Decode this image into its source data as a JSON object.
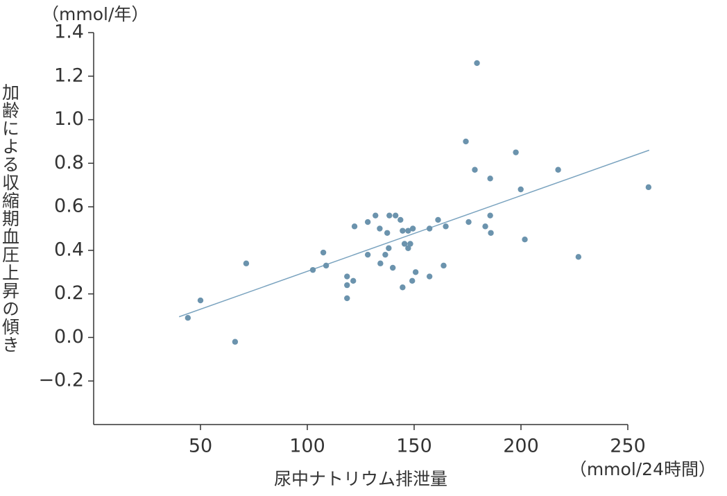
{
  "chart_data": {
    "type": "scatter",
    "y_unit": "（mmol/年）",
    "ylabel": "加齢による収縮期血圧上昇の傾き",
    "xlabel": "尿中ナトリウム排泄量",
    "x_unit": "（mmol/24時間）",
    "color": "#6b93ad",
    "x": [
      44.1,
      50,
      66.2,
      71.4,
      102.6,
      107.5,
      108.8,
      118.6,
      118.6,
      118.6,
      121.5,
      122.1,
      128.3,
      128.3,
      131.9,
      133.9,
      134.2,
      136.5,
      137.4,
      138.1,
      138.4,
      140,
      141.3,
      143.6,
      144.6,
      144.6,
      145.5,
      147.2,
      147.2,
      148.2,
      149.4,
      149.1,
      150.7,
      157.2,
      157.2,
      161.2,
      163.8,
      164.8,
      174.2,
      175.5,
      178.4,
      179.4,
      183.3,
      185.6,
      185.6,
      185.9,
      197.6,
      199.9,
      201.8,
      217.4,
      226.9,
      259.7
    ],
    "values": [
      0.09,
      0.17,
      -0.02,
      0.34,
      0.31,
      0.39,
      0.33,
      0.28,
      0.24,
      0.18,
      0.26,
      0.51,
      0.53,
      0.38,
      0.56,
      0.5,
      0.34,
      0.38,
      0.48,
      0.41,
      0.56,
      0.32,
      0.56,
      0.54,
      0.49,
      0.23,
      0.43,
      0.49,
      0.41,
      0.43,
      0.5,
      0.26,
      0.3,
      0.5,
      0.28,
      0.54,
      0.33,
      0.51,
      0.9,
      0.53,
      0.77,
      1.26,
      0.51,
      0.56,
      0.73,
      0.48,
      0.85,
      0.68,
      0.45,
      0.77,
      0.37,
      0.69
    ],
    "trendline": {
      "color": "#7aa3bf",
      "x": [
        40,
        260
      ],
      "y": [
        0.095,
        0.86
      ]
    },
    "xlim": [
      0,
      250
    ],
    "ylim": [
      -0.4,
      1.4
    ],
    "xticks": [
      50,
      100,
      150,
      200,
      250
    ],
    "yticks": [
      {
        "value": -0.2,
        "label": "−0.2"
      },
      {
        "value": 0,
        "label": "0.0"
      },
      0.2,
      0.4,
      0.6,
      0.8,
      {
        "value": 1,
        "label": "1.0"
      },
      1.2,
      1.4
    ]
  }
}
